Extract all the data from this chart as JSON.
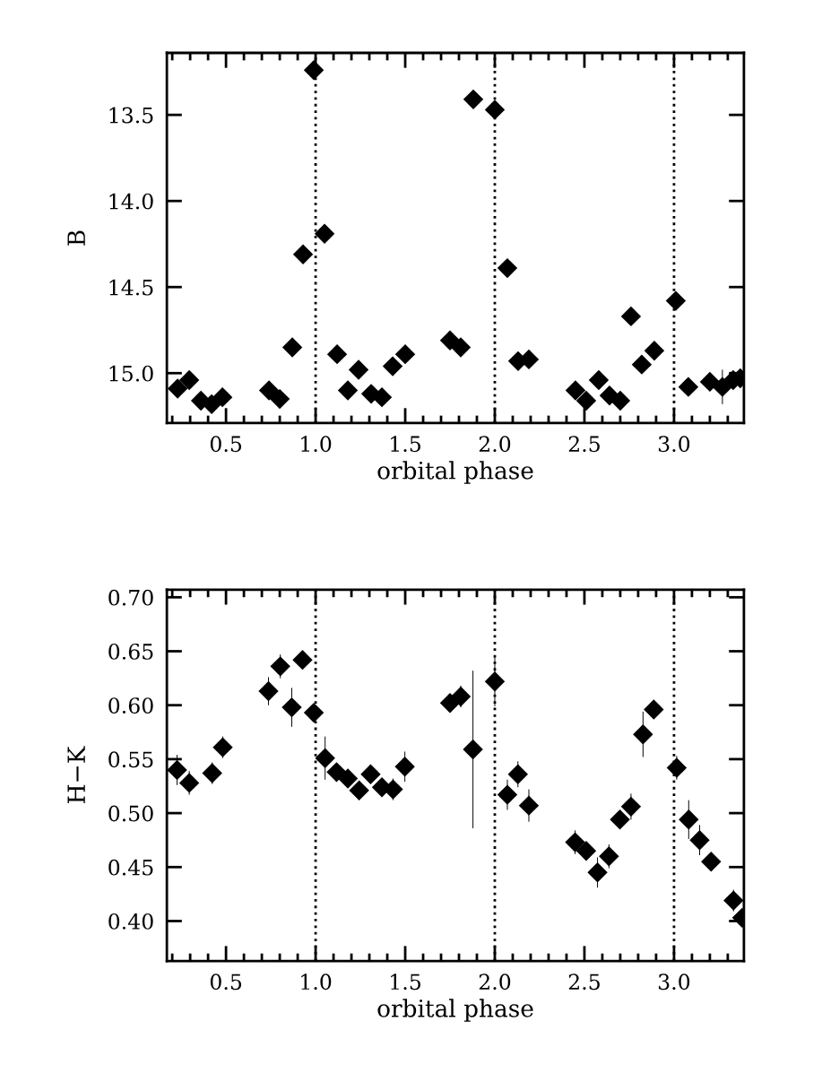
{
  "chart_data": [
    {
      "type": "scatter",
      "xlabel": "orbital phase",
      "ylabel": "B",
      "marker": "diamond",
      "x": [
        0.23,
        0.295,
        0.36,
        0.42,
        0.48,
        0.74,
        0.8,
        0.87,
        0.93,
        0.99,
        1.05,
        1.12,
        1.18,
        1.24,
        1.31,
        1.37,
        1.43,
        1.5,
        1.75,
        1.81,
        1.88,
        2.0,
        2.07,
        2.13,
        2.19,
        2.45,
        2.51,
        2.58,
        2.64,
        2.7,
        2.76,
        2.82,
        2.89,
        3.01,
        3.08,
        3.2,
        3.27,
        3.33,
        3.37
      ],
      "series": [
        {
          "color": "#000000",
          "values": [
            15.09,
            15.04,
            15.16,
            15.18,
            15.14,
            15.1,
            15.15,
            14.85,
            14.31,
            13.24,
            14.19,
            14.89,
            15.1,
            14.98,
            15.12,
            15.14,
            14.96,
            14.89,
            14.81,
            14.85,
            13.41,
            13.47,
            14.39,
            14.93,
            14.92,
            15.1,
            15.16,
            15.04,
            15.13,
            15.16,
            14.67,
            14.95,
            14.87,
            14.58,
            15.08,
            15.05,
            15.08,
            15.04,
            15.03
          ],
          "errors": [
            null,
            null,
            null,
            null,
            null,
            null,
            null,
            null,
            null,
            null,
            null,
            null,
            null,
            null,
            null,
            null,
            null,
            null,
            null,
            null,
            null,
            null,
            null,
            null,
            null,
            null,
            null,
            null,
            null,
            null,
            null,
            null,
            null,
            null,
            null,
            null,
            0.1,
            null,
            null
          ]
        }
      ],
      "xlim": [
        0.17,
        3.39
      ],
      "ylim": [
        15.29,
        13.14
      ],
      "xticks": [
        0.5,
        {
          "value": 1,
          "label": "1.0"
        },
        1.5,
        {
          "value": 2,
          "label": "2.0"
        },
        2.5,
        {
          "value": 3,
          "label": "3.0"
        }
      ],
      "yticks": [
        13.5,
        {
          "value": 14,
          "label": "14.0"
        },
        14.5,
        {
          "value": 15,
          "label": "15.0"
        }
      ],
      "ref_lines": [
        {
          "axis": "x",
          "value": 1.0,
          "color": "#000000",
          "line_style": "dotted"
        },
        {
          "axis": "x",
          "value": 2.0,
          "color": "#000000",
          "line_style": "dotted"
        },
        {
          "axis": "x",
          "value": 3.0,
          "color": "#000000",
          "line_style": "dotted"
        }
      ]
    },
    {
      "type": "scatter",
      "xlabel": "orbital phase",
      "ylabel": "H−K",
      "marker": "diamond",
      "x": [
        0.227,
        0.295,
        0.423,
        0.482,
        0.737,
        0.803,
        0.867,
        0.927,
        0.99,
        1.053,
        1.117,
        1.18,
        1.243,
        1.307,
        1.37,
        1.432,
        1.498,
        1.75,
        1.81,
        1.878,
        2.0,
        2.07,
        2.129,
        2.19,
        2.448,
        2.51,
        2.573,
        2.637,
        2.698,
        2.76,
        2.827,
        2.887,
        3.015,
        3.082,
        3.143,
        3.207,
        3.332,
        3.38
      ],
      "series": [
        {
          "color": "#000000",
          "values": [
            0.54,
            0.528,
            0.537,
            0.561,
            0.613,
            0.636,
            0.598,
            0.642,
            0.593,
            0.551,
            0.538,
            0.532,
            0.521,
            0.536,
            0.524,
            0.522,
            0.543,
            0.602,
            0.608,
            0.559,
            0.622,
            0.517,
            0.536,
            0.507,
            0.473,
            0.465,
            0.445,
            0.46,
            0.494,
            0.506,
            0.573,
            0.596,
            0.542,
            0.494,
            0.475,
            0.455,
            0.419,
            0.403
          ],
          "errors": [
            0.014,
            0.011,
            0.01,
            0.01,
            0.013,
            0.011,
            0.018,
            0.004,
            null,
            0.02,
            0.006,
            0.006,
            0.006,
            0.005,
            0.005,
            0.01,
            0.014,
            null,
            0.01,
            0.073,
            0.023,
            0.014,
            0.012,
            0.015,
            0.011,
            0.005,
            0.014,
            0.011,
            0.005,
            0.012,
            0.021,
            null,
            0.011,
            0.018,
            0.014,
            null,
            0.01,
            null
          ]
        }
      ],
      "xlim": [
        0.17,
        3.39
      ],
      "ylim": [
        0.363,
        0.707
      ],
      "xticks": [
        0.5,
        {
          "value": 1,
          "label": "1.0"
        },
        1.5,
        {
          "value": 2,
          "label": "2.0"
        },
        2.5,
        {
          "value": 3,
          "label": "3.0"
        }
      ],
      "yticks": [
        {
          "value": 0.4,
          "label": "0.40"
        },
        {
          "value": 0.45,
          "label": "0.45"
        },
        {
          "value": 0.5,
          "label": "0.50"
        },
        {
          "value": 0.55,
          "label": "0.55"
        },
        {
          "value": 0.6,
          "label": "0.60"
        },
        {
          "value": 0.65,
          "label": "0.65"
        },
        {
          "value": 0.7,
          "label": "0.70"
        }
      ],
      "ref_lines": [
        {
          "axis": "x",
          "value": 1.0,
          "color": "#000000",
          "line_style": "dotted"
        },
        {
          "axis": "x",
          "value": 2.0,
          "color": "#000000",
          "line_style": "dotted"
        },
        {
          "axis": "x",
          "value": 3.0,
          "color": "#000000",
          "line_style": "dotted"
        }
      ]
    }
  ]
}
